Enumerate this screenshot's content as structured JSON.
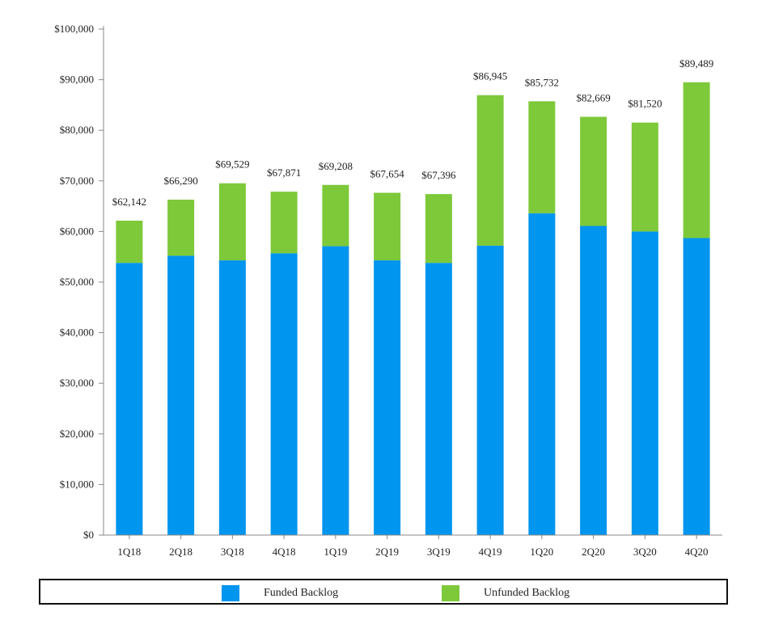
{
  "chart_data": {
    "type": "bar",
    "stacked": true,
    "categories": [
      "1Q18",
      "2Q18",
      "3Q18",
      "4Q18",
      "1Q19",
      "2Q19",
      "3Q19",
      "4Q19",
      "1Q20",
      "2Q20",
      "3Q20",
      "4Q20"
    ],
    "series": [
      {
        "name": "Funded Backlog",
        "color": "#0095EE",
        "values": [
          53800,
          55200,
          54300,
          55700,
          57100,
          54300,
          53800,
          57200,
          63600,
          61100,
          60000,
          58700
        ]
      },
      {
        "name": "Unfunded Backlog",
        "color": "#7DC93A",
        "values": [
          8342,
          11090,
          15229,
          12171,
          12108,
          13354,
          13596,
          29745,
          22132,
          21569,
          21520,
          30789
        ]
      }
    ],
    "totals": [
      62142,
      66290,
      69529,
      67871,
      69208,
      67654,
      67396,
      86945,
      85732,
      82669,
      81520,
      89489
    ],
    "total_labels": [
      "$62,142",
      "$66,290",
      "$69,529",
      "$67,871",
      "$69,208",
      "$67,654",
      "$67,396",
      "$86,945",
      "$85,732",
      "$82,669",
      "$81,520",
      "$89,489"
    ],
    "ylim": [
      0,
      100000
    ],
    "yticks": [
      0,
      10000,
      20000,
      30000,
      40000,
      50000,
      60000,
      70000,
      80000,
      90000,
      100000
    ],
    "ytick_labels": [
      "$0",
      "$10,000",
      "$20,000",
      "$30,000",
      "$40,000",
      "$50,000",
      "$60,000",
      "$70,000",
      "$80,000",
      "$90,000",
      "$100,000"
    ],
    "grid": false,
    "legend_position": "bottom"
  }
}
